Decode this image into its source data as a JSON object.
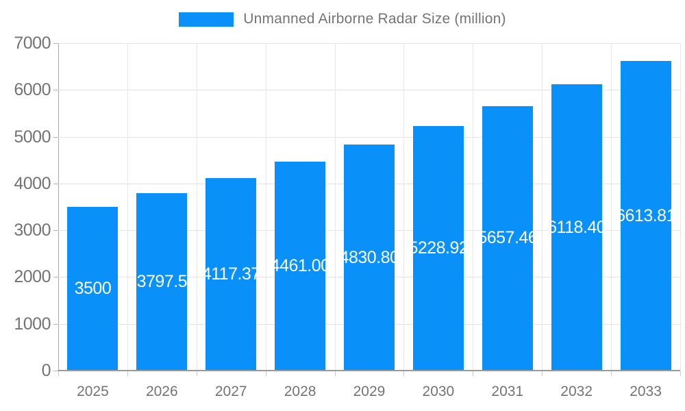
{
  "legend": {
    "items": [
      {
        "label": "Unmanned Airborne Radar Size (million)",
        "color": "#0990f9"
      }
    ]
  },
  "chart_data": {
    "type": "bar",
    "title": "",
    "xlabel": "",
    "ylabel": "",
    "categories": [
      "2025",
      "2026",
      "2027",
      "2028",
      "2029",
      "2030",
      "2031",
      "2032",
      "2033"
    ],
    "series": [
      {
        "name": "Unmanned Airborne Radar Size (million)",
        "values": [
          3500,
          3797.5,
          4117.37,
          4461.0,
          4830.8,
          5228.92,
          5657.46,
          6118.4,
          6613.81
        ],
        "labels": [
          "3500",
          "3797.5",
          "4117.37",
          "4461.00",
          "4830.80",
          "5228.92",
          "5657.46",
          "6118.40",
          "6613.81"
        ]
      }
    ],
    "ylim": [
      0,
      7000
    ],
    "y_ticks": [
      0,
      1000,
      2000,
      3000,
      4000,
      5000,
      6000,
      7000
    ],
    "grid": true,
    "legend_position": "top",
    "colors": {
      "bar": "#0990f9",
      "bar_label": "#ffffff",
      "axis_text": "#737373",
      "gridline": "#e3e3e3",
      "axis_line": "#9a9a9a"
    }
  }
}
